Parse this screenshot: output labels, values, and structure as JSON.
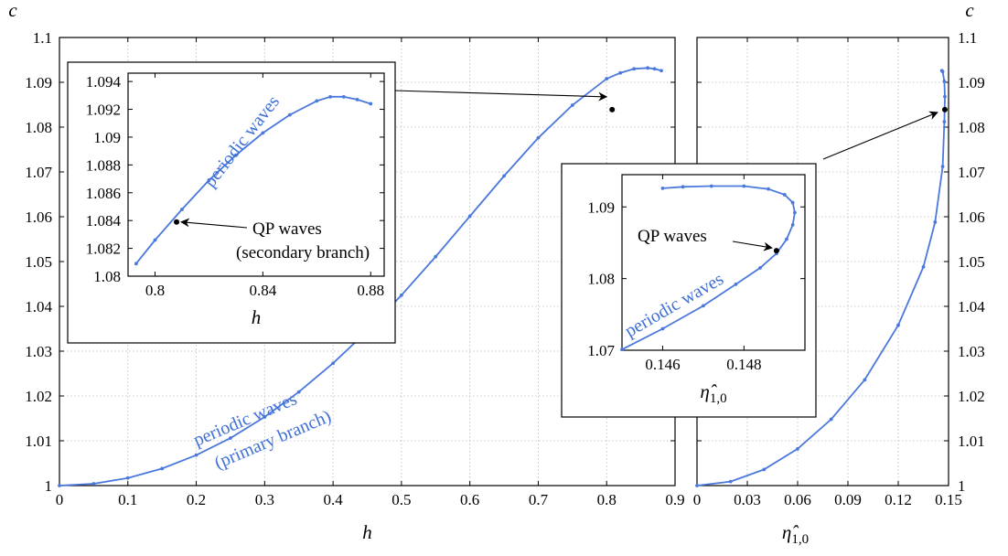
{
  "chart_data": [
    {
      "id": "main-left",
      "type": "line",
      "xlabel": "h",
      "ylabel": "c",
      "xlim": [
        0,
        0.9
      ],
      "ylim": [
        1.0,
        1.1
      ],
      "xticks": [
        "0",
        "0.1",
        "0.2",
        "0.3",
        "0.4",
        "0.5",
        "0.6",
        "0.7",
        "0.8",
        "0.9"
      ],
      "yticks": [
        "1",
        "1.01",
        "1.02",
        "1.03",
        "1.04",
        "1.05",
        "1.06",
        "1.07",
        "1.08",
        "1.09",
        "1.1"
      ],
      "grid": true,
      "series": [
        {
          "label_lines": [
            "periodic waves",
            "(primary branch)"
          ],
          "color": "#4a78dc",
          "x": [
            0,
            0.05,
            0.1,
            0.15,
            0.2,
            0.25,
            0.3,
            0.35,
            0.4,
            0.45,
            0.5,
            0.55,
            0.6,
            0.65,
            0.7,
            0.75,
            0.8,
            0.82,
            0.84,
            0.86,
            0.87,
            0.88
          ],
          "y": [
            1.0,
            1.0004,
            1.0017,
            1.0038,
            1.0068,
            1.0106,
            1.0153,
            1.0209,
            1.0273,
            1.0345,
            1.0425,
            1.0511,
            1.0601,
            1.0691,
            1.0776,
            1.0849,
            1.0908,
            1.0921,
            1.093,
            1.0932,
            1.093,
            1.0926
          ]
        }
      ],
      "qp_point": {
        "x": 0.808,
        "y": 1.0839
      }
    },
    {
      "id": "main-right",
      "type": "line",
      "xlabel": "η̂1,0",
      "ylabel": "c",
      "xlim": [
        0,
        0.15
      ],
      "ylim": [
        1.0,
        1.1
      ],
      "xticks": [
        "0",
        "0.03",
        "0.06",
        "0.09",
        "0.12",
        "0.15"
      ],
      "yticks": [
        "1",
        "1.01",
        "1.02",
        "1.03",
        "1.04",
        "1.05",
        "1.06",
        "1.07",
        "1.08",
        "1.09",
        "1.1"
      ],
      "grid": true,
      "series": [
        {
          "color": "#4a78dc",
          "x": [
            0,
            0.02,
            0.04,
            0.06,
            0.08,
            0.1,
            0.12,
            0.135,
            0.142,
            0.1465,
            0.1475,
            0.1478,
            0.1475,
            0.1465,
            0.146
          ],
          "y": [
            1.0,
            1.0009,
            1.0036,
            1.0082,
            1.0148,
            1.0236,
            1.0358,
            1.0488,
            1.0588,
            1.0712,
            1.0812,
            1.0868,
            1.0902,
            1.0924,
            1.0926
          ]
        }
      ],
      "qp_point": {
        "x": 0.1478,
        "y": 1.0839
      }
    },
    {
      "id": "inset-left",
      "type": "line",
      "xlabel": "h",
      "xlim": [
        0.79,
        0.885
      ],
      "ylim": [
        1.08,
        1.0946
      ],
      "xticks": [
        "0.8",
        "0.84",
        "0.88"
      ],
      "yticks": [
        "1.08",
        "1.082",
        "1.084",
        "1.086",
        "1.088",
        "1.09",
        "1.092",
        "1.094"
      ],
      "series": [
        {
          "label": "periodic waves",
          "color": "#4a78dc",
          "x": [
            0.793,
            0.8,
            0.81,
            0.82,
            0.83,
            0.84,
            0.85,
            0.86,
            0.865,
            0.87,
            0.875,
            0.88
          ],
          "y": [
            1.0809,
            1.0826,
            1.0848,
            1.0869,
            1.0887,
            1.0903,
            1.0916,
            1.0926,
            1.0929,
            1.0929,
            1.0927,
            1.0924
          ]
        }
      ],
      "qp_point": {
        "x": 0.808,
        "y": 1.0839,
        "label_lines": [
          "QP waves",
          "(secondary branch)"
        ]
      }
    },
    {
      "id": "inset-right",
      "type": "line",
      "xlabel": "η̂1,0",
      "xlim": [
        0.145,
        0.1495
      ],
      "ylim": [
        1.07,
        1.0945
      ],
      "xticks": [
        "0.146",
        "0.148"
      ],
      "yticks": [
        "1.07",
        "1.08",
        "1.09"
      ],
      "series": [
        {
          "label": "periodic waves",
          "color": "#4a78dc",
          "x": [
            0.145,
            0.146,
            0.147,
            0.1478,
            0.1484,
            0.1488,
            0.14905,
            0.1492,
            0.14925,
            0.1492,
            0.149,
            0.1486,
            0.148,
            0.1472,
            0.1465,
            0.146
          ],
          "y": [
            1.0701,
            1.073,
            1.0762,
            1.0792,
            1.0815,
            1.0835,
            1.0855,
            1.0875,
            1.0892,
            1.0906,
            1.0917,
            1.0925,
            1.0929,
            1.0929,
            1.0928,
            1.0926
          ]
        }
      ],
      "qp_point": {
        "x": 0.1488,
        "y": 1.0839,
        "label": "QP waves"
      }
    }
  ]
}
